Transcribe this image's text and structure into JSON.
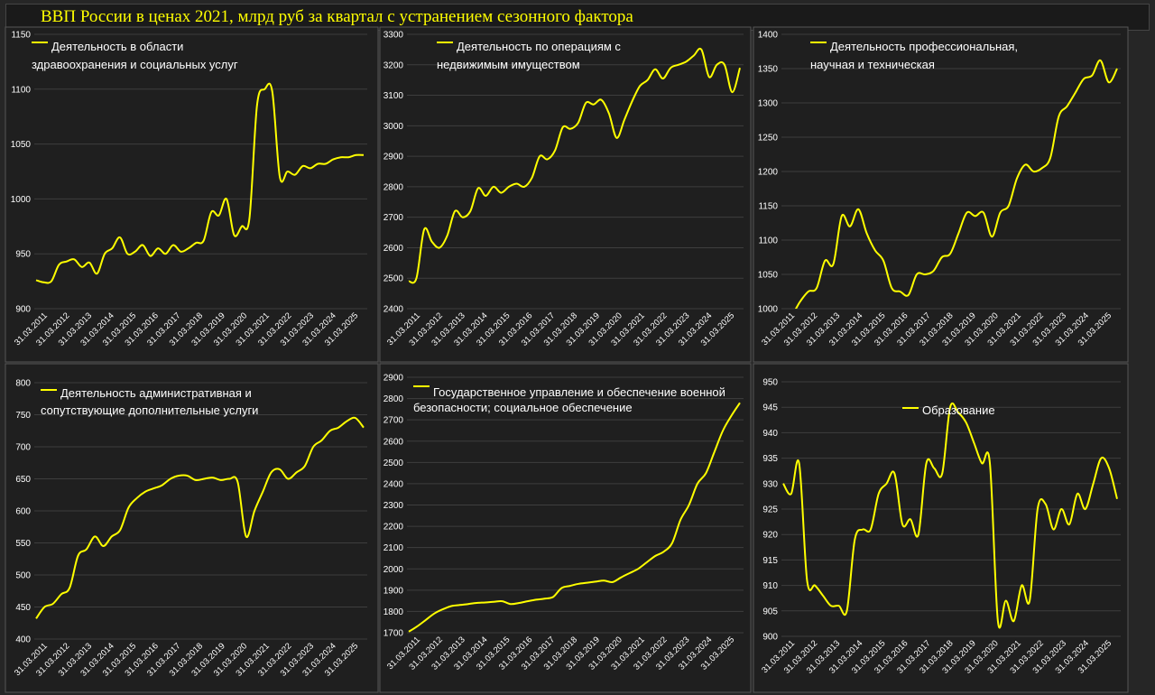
{
  "title": "ВВП России в ценах 2021, млрд руб за квартал с устранением сезонного фактора",
  "colors": {
    "line": "#ffff00",
    "background": "#1f1f1f",
    "grid": "#3e3e3e",
    "text": "#ffffff"
  },
  "x_tick_labels": [
    "31.03.2011",
    "31.03.2012",
    "31.03.2013",
    "31.03.2014",
    "31.03.2015",
    "31.03.2016",
    "31.03.2017",
    "31.03.2018",
    "31.03.2019",
    "31.03.2020",
    "31.03.2021",
    "31.03.2022",
    "31.03.2023",
    "31.03.2024",
    "31.03.2025"
  ],
  "chart_data": [
    {
      "type": "line",
      "legend": "Деятельность в области здравоохранения и социальных услуг",
      "ylim": [
        900,
        1150
      ],
      "yticks": [
        900,
        950,
        1000,
        1050,
        1100,
        1150
      ],
      "grid": true,
      "x_start": "2011-03-31",
      "values": [
        926,
        924,
        925,
        940,
        943,
        945,
        938,
        942,
        932,
        950,
        955,
        965,
        950,
        952,
        958,
        948,
        955,
        950,
        958,
        952,
        955,
        960,
        962,
        988,
        985,
        1000,
        967,
        975,
        982,
        1085,
        1100,
        1098,
        1020,
        1025,
        1022,
        1030,
        1028,
        1032,
        1032,
        1036,
        1038,
        1038,
        1040,
        1040
      ]
    },
    {
      "type": "line",
      "legend": "Деятельность по операциям с недвижимым имуществом",
      "ylim": [
        2400,
        3300
      ],
      "yticks": [
        2400,
        2500,
        2600,
        2700,
        2800,
        2900,
        3000,
        3100,
        3200,
        3300
      ],
      "grid": true,
      "x_start": "2011-03-31",
      "values": [
        2490,
        2500,
        2660,
        2620,
        2600,
        2640,
        2720,
        2700,
        2720,
        2795,
        2770,
        2800,
        2780,
        2800,
        2810,
        2800,
        2830,
        2900,
        2890,
        2920,
        2995,
        2990,
        3010,
        3075,
        3070,
        3085,
        3040,
        2960,
        3020,
        3080,
        3130,
        3150,
        3185,
        3155,
        3190,
        3200,
        3210,
        3230,
        3250,
        3160,
        3200,
        3200,
        3110,
        3190
      ]
    },
    {
      "type": "line",
      "legend": "Деятельность профессиональная, научная и техническая",
      "ylim": [
        1000,
        1400
      ],
      "yticks": [
        1000,
        1050,
        1100,
        1150,
        1200,
        1250,
        1300,
        1350,
        1400
      ],
      "grid": true,
      "x_start": "2011-03-31",
      "values": [
        985,
        990,
        1010,
        1025,
        1030,
        1070,
        1065,
        1135,
        1120,
        1145,
        1110,
        1085,
        1070,
        1030,
        1025,
        1020,
        1050,
        1050,
        1055,
        1075,
        1080,
        1110,
        1140,
        1135,
        1140,
        1105,
        1140,
        1150,
        1190,
        1210,
        1200,
        1205,
        1220,
        1280,
        1295,
        1315,
        1335,
        1340,
        1362,
        1330,
        1350
      ]
    },
    {
      "type": "line",
      "legend": "Деятельность административная и сопутствующие дополнительные услуги",
      "ylim": [
        400,
        800
      ],
      "yticks": [
        400,
        450,
        500,
        550,
        600,
        650,
        700,
        750,
        800
      ],
      "grid": true,
      "x_start": "2011-03-31",
      "values": [
        432,
        450,
        455,
        470,
        480,
        530,
        540,
        560,
        545,
        560,
        570,
        605,
        620,
        630,
        635,
        640,
        650,
        655,
        655,
        648,
        650,
        652,
        648,
        650,
        645,
        560,
        600,
        630,
        660,
        665,
        650,
        660,
        670,
        700,
        710,
        725,
        730,
        740,
        745,
        730
      ]
    },
    {
      "type": "line",
      "legend": "Государственное управление и обеспечение военной безопасности; социальное обеспечение",
      "ylim": [
        1700,
        2900
      ],
      "yticks": [
        1700,
        1800,
        1900,
        2000,
        2100,
        2200,
        2300,
        2400,
        2500,
        2600,
        2700,
        2800,
        2900
      ],
      "grid": true,
      "x_start": "2011-03-31",
      "values": [
        1705,
        1730,
        1760,
        1790,
        1810,
        1825,
        1830,
        1835,
        1840,
        1842,
        1845,
        1848,
        1835,
        1840,
        1848,
        1855,
        1860,
        1868,
        1910,
        1920,
        1930,
        1935,
        1940,
        1945,
        1938,
        1960,
        1980,
        2000,
        2030,
        2060,
        2080,
        2120,
        2230,
        2300,
        2400,
        2450,
        2550,
        2650,
        2720,
        2780
      ]
    },
    {
      "type": "line",
      "legend": "Образование",
      "ylim": [
        900,
        950
      ],
      "yticks": [
        900,
        905,
        910,
        915,
        920,
        925,
        930,
        935,
        940,
        945,
        950
      ],
      "grid": true,
      "x_start": "2011-03-31",
      "values": [
        930,
        928,
        934,
        911,
        910,
        908,
        906,
        906,
        905,
        919,
        921,
        921,
        928,
        930,
        932,
        922,
        923,
        920,
        934,
        933,
        932,
        945,
        944,
        942,
        938,
        934,
        934,
        903,
        907,
        903,
        910,
        907,
        925,
        926,
        921,
        925,
        922,
        928,
        925,
        930,
        935,
        933,
        927
      ]
    }
  ]
}
